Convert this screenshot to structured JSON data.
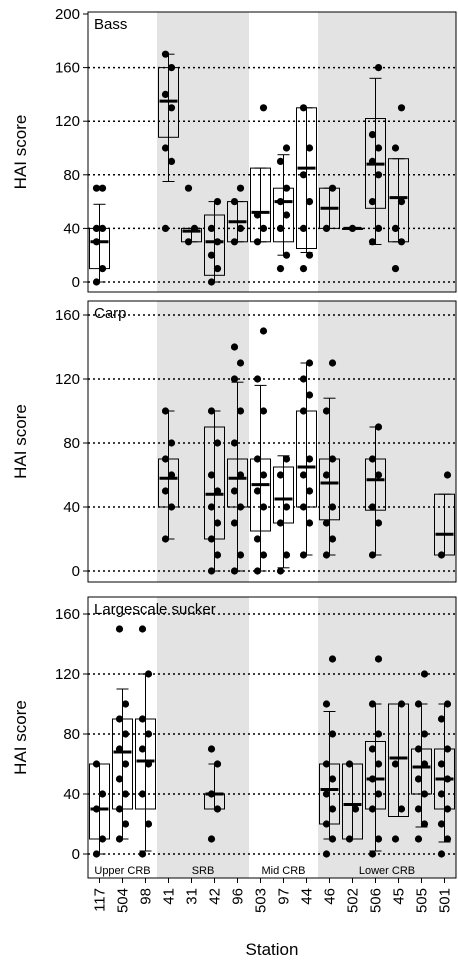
{
  "chart_data": {
    "type": "box",
    "xlabel": "Station",
    "stations": [
      "117",
      "504",
      "98",
      "41",
      "31",
      "42",
      "96",
      "503",
      "97",
      "44",
      "46",
      "502",
      "506",
      "45",
      "505",
      "501"
    ],
    "regions": [
      {
        "label": "Upper CRB",
        "shaded": false,
        "from": 0,
        "to": 2
      },
      {
        "label": "SRB",
        "shaded": true,
        "from": 3,
        "to": 6
      },
      {
        "label": "Mid CRB",
        "shaded": false,
        "from": 7,
        "to": 9
      },
      {
        "label": "Lower CRB",
        "shaded": true,
        "from": 10,
        "to": 15
      }
    ],
    "panels": [
      {
        "title": "Bass",
        "ylabel": "HAI score",
        "ylim": [
          0,
          200
        ],
        "yticks": [
          0,
          40,
          80,
          120,
          160,
          200
        ],
        "gridlines": [
          0,
          40,
          80,
          120,
          160
        ],
        "stations": [
          {
            "station": "117",
            "min": 0,
            "q1": 10,
            "median": 30,
            "q3": 40,
            "max": 58,
            "points": [
              0,
              10,
              30,
              40,
              40,
              70,
              70
            ]
          },
          {
            "station": "41",
            "min": 75,
            "q1": 108,
            "median": 135,
            "q3": 160,
            "max": 170,
            "points": [
              40,
              90,
              100,
              130,
              140,
              160,
              170
            ]
          },
          {
            "station": "31",
            "min": 30,
            "q1": 30,
            "median": 38,
            "q3": 40,
            "max": 40,
            "points": [
              30,
              40,
              70
            ]
          },
          {
            "station": "42",
            "min": 0,
            "q1": 5,
            "median": 30,
            "q3": 50,
            "max": 60,
            "points": [
              0,
              10,
              20,
              30,
              40,
              60
            ]
          },
          {
            "station": "96",
            "min": 30,
            "q1": 30,
            "median": 45,
            "q3": 60,
            "max": 60,
            "points": [
              30,
              40,
              60,
              70
            ]
          },
          {
            "station": "503",
            "min": 30,
            "q1": 30,
            "median": 52,
            "q3": 85,
            "max": 85,
            "points": [
              30,
              40,
              50,
              130
            ]
          },
          {
            "station": "97",
            "min": 20,
            "q1": 30,
            "median": 60,
            "q3": 70,
            "max": 95,
            "points": [
              10,
              20,
              40,
              50,
              60,
              70,
              90,
              100
            ]
          },
          {
            "station": "44",
            "min": 22,
            "q1": 25,
            "median": 85,
            "q3": 130,
            "max": 130,
            "points": [
              10,
              20,
              40,
              60,
              80,
              100,
              130
            ]
          },
          {
            "station": "46",
            "min": 40,
            "q1": 40,
            "median": 55,
            "q3": 70,
            "max": 70,
            "points": [
              40,
              70
            ]
          },
          {
            "station": "502",
            "min": 40,
            "q1": 40,
            "median": 40,
            "q3": 40,
            "max": 40,
            "points": [
              40
            ]
          },
          {
            "station": "506",
            "min": 28,
            "q1": 55,
            "median": 88,
            "q3": 122,
            "max": 152,
            "points": [
              30,
              40,
              60,
              80,
              90,
              100,
              110,
              160
            ]
          },
          {
            "station": "45",
            "min": 30,
            "q1": 30,
            "median": 63,
            "q3": 92,
            "max": 92,
            "points": [
              10,
              30,
              40,
              60,
              100,
              130
            ]
          }
        ]
      },
      {
        "title": "Carp",
        "ylabel": "HAI score",
        "ylim": [
          -8,
          168
        ],
        "yticks": [
          0,
          40,
          80,
          120,
          160
        ],
        "gridlines": [
          0,
          40,
          80,
          120,
          160
        ],
        "stations": [
          {
            "station": "41",
            "min": 20,
            "q1": 40,
            "median": 58,
            "q3": 70,
            "max": 100,
            "points": [
              20,
              40,
              50,
              60,
              70,
              80,
              100
            ]
          },
          {
            "station": "42",
            "min": 0,
            "q1": 20,
            "median": 48,
            "q3": 90,
            "max": 100,
            "points": [
              0,
              10,
              20,
              30,
              40,
              50,
              60,
              80,
              100
            ]
          },
          {
            "station": "96",
            "min": 0,
            "q1": 40,
            "median": 58,
            "q3": 70,
            "max": 118,
            "points": [
              0,
              10,
              30,
              40,
              50,
              60,
              80,
              100,
              120,
              130,
              140
            ]
          },
          {
            "station": "503",
            "min": 0,
            "q1": 25,
            "median": 54,
            "q3": 70,
            "max": 116,
            "points": [
              0,
              10,
              20,
              40,
              50,
              60,
              70,
              100,
              120,
              150
            ]
          },
          {
            "station": "97",
            "min": 2,
            "q1": 30,
            "median": 45,
            "q3": 65,
            "max": 72,
            "points": [
              0,
              10,
              30,
              40,
              60,
              70
            ]
          },
          {
            "station": "44",
            "min": 10,
            "q1": 40,
            "median": 65,
            "q3": 100,
            "max": 130,
            "points": [
              10,
              30,
              40,
              50,
              60,
              70,
              100,
              110,
              120,
              130
            ]
          },
          {
            "station": "46",
            "min": 10,
            "q1": 32,
            "median": 55,
            "q3": 70,
            "max": 108,
            "points": [
              10,
              20,
              30,
              40,
              60,
              70,
              100,
              130
            ]
          },
          {
            "station": "506",
            "min": 10,
            "q1": 38,
            "median": 57,
            "q3": 70,
            "max": 90,
            "points": [
              10,
              30,
              40,
              60,
              70,
              90
            ]
          },
          {
            "station": "501",
            "min": 10,
            "q1": 10,
            "median": 23,
            "q3": 48,
            "max": 48,
            "points": [
              10,
              60
            ]
          }
        ]
      },
      {
        "title": "Largescale sucker",
        "ylabel": "HAI score",
        "ylim": [
          -8,
          168
        ],
        "yticks": [
          0,
          40,
          80,
          120,
          160
        ],
        "gridlines": [
          0,
          40,
          80,
          120,
          160
        ],
        "stations": [
          {
            "station": "117",
            "min": 0,
            "q1": 10,
            "median": 30,
            "q3": 60,
            "max": 60,
            "points": [
              0,
              10,
              30,
              40,
              60
            ]
          },
          {
            "station": "504",
            "min": 10,
            "q1": 30,
            "median": 68,
            "q3": 90,
            "max": 110,
            "points": [
              10,
              20,
              30,
              40,
              50,
              60,
              70,
              80,
              90,
              100,
              150
            ]
          },
          {
            "station": "98",
            "min": 2,
            "q1": 30,
            "median": 62,
            "q3": 90,
            "max": 120,
            "points": [
              0,
              20,
              40,
              60,
              70,
              80,
              90,
              120,
              150
            ]
          },
          {
            "station": "42",
            "min": 30,
            "q1": 30,
            "median": 40,
            "q3": 40,
            "max": 60,
            "points": [
              10,
              30,
              40,
              60,
              70
            ]
          },
          {
            "station": "46",
            "min": 10,
            "q1": 20,
            "median": 43,
            "q3": 60,
            "max": 95,
            "points": [
              0,
              10,
              20,
              30,
              40,
              50,
              60,
              80,
              100,
              130
            ]
          },
          {
            "station": "502",
            "min": 10,
            "q1": 10,
            "median": 33,
            "q3": 60,
            "max": 60,
            "points": [
              10,
              30,
              60
            ]
          },
          {
            "station": "506",
            "min": 2,
            "q1": 30,
            "median": 50,
            "q3": 75,
            "max": 100,
            "points": [
              0,
              10,
              30,
              40,
              50,
              60,
              70,
              80,
              100,
              130
            ]
          },
          {
            "station": "45",
            "min": 25,
            "q1": 25,
            "median": 64,
            "q3": 100,
            "max": 100,
            "points": [
              10,
              30,
              60,
              100
            ]
          },
          {
            "station": "505",
            "min": 18,
            "q1": 40,
            "median": 58,
            "q3": 70,
            "max": 100,
            "points": [
              10,
              20,
              30,
              40,
              50,
              60,
              70,
              80,
              100,
              120
            ]
          },
          {
            "station": "501",
            "min": 8,
            "q1": 30,
            "median": 50,
            "q3": 70,
            "max": 100,
            "points": [
              0,
              10,
              20,
              30,
              40,
              50,
              60,
              70,
              90,
              100
            ]
          }
        ]
      }
    ]
  }
}
